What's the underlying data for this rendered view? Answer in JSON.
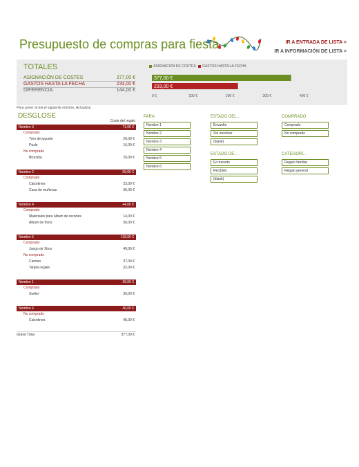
{
  "header": {
    "title": "Presupuesto de compras para fiesta",
    "link_list_entry": "IR A ENTRADA DE LISTA >",
    "link_list_info": "IR A INFORMACIÓN DE LISTA >"
  },
  "totals": {
    "title": "TOTALES",
    "rows": [
      {
        "label": "ASIGNACIÓN DE COSTES",
        "value": "377,00 €"
      },
      {
        "label": "GASTOS HASTA LA FECHA",
        "value": "233,00 €"
      },
      {
        "label": "DIFERENCIA",
        "value": "144,00 €"
      }
    ]
  },
  "chart_data": {
    "type": "bar",
    "orientation": "horizontal",
    "series": [
      {
        "name": "ASIGNACIÓN DE COSTES",
        "value": 377,
        "label": "377,00 €",
        "color": "#6b8e23"
      },
      {
        "name": "GASTOS HASTA LA FECHA",
        "value": 233,
        "label": "233,00 €",
        "color": "#b22222"
      }
    ],
    "ticks": [
      "0 €",
      "100 €",
      "200 €",
      "300 €",
      "400 €"
    ],
    "xlim": [
      0,
      400
    ],
    "legend_position": "top"
  },
  "note": "Para poner al día el siguiente informe, Actualizar.",
  "breakdown": {
    "title": "DESGLOSE",
    "column_header": "Coste del regalo",
    "groups": [
      {
        "name": "Nombre 3",
        "total": "71,00 €",
        "statuses": [
          {
            "status": "Comprado",
            "items": [
              {
                "name": "Tren de juguete",
                "value": "26,00 €"
              },
              {
                "name": "Puzle",
                "value": "16,00 €"
              }
            ]
          },
          {
            "status": "No comprado",
            "items": [
              {
                "name": "Bicicleta",
                "value": "29,00 €"
              }
            ]
          }
        ]
      },
      {
        "name": "Nombre 2",
        "total": "59,00 €",
        "statuses": [
          {
            "status": "Comprado",
            "items": [
              {
                "name": "Calcetines",
                "value": "23,00 €"
              },
              {
                "name": "Casa de muñecas",
                "value": "36,00 €"
              }
            ]
          }
        ]
      },
      {
        "name": "Nombre 4",
        "total": "44,00 €",
        "statuses": [
          {
            "status": "Comprado",
            "items": [
              {
                "name": "Materiales para álbum de recortes",
                "value": "14,00 €"
              },
              {
                "name": "Álbum de fotos",
                "value": "30,00 €"
              }
            ]
          }
        ]
      },
      {
        "name": "Nombre 5",
        "total": "118,00 €",
        "statuses": [
          {
            "status": "Comprado",
            "items": [
              {
                "name": "Juego de Xbox",
                "value": "49,00 €"
              }
            ]
          },
          {
            "status": "No comprado",
            "items": [
              {
                "name": "Camisa",
                "value": "37,00 €"
              },
              {
                "name": "Tarjeta regalo",
                "value": "32,00 €"
              }
            ]
          }
        ]
      },
      {
        "name": "Nombre 1",
        "total": "39,00 €",
        "statuses": [
          {
            "status": "Comprado",
            "items": [
              {
                "name": "Suéter",
                "value": "39,00 €"
              }
            ]
          }
        ]
      },
      {
        "name": "Nombre 6",
        "total": "46,00 €",
        "statuses": [
          {
            "status": "No comprado",
            "items": [
              {
                "name": "Calcetines",
                "value": "46,00 €"
              }
            ]
          }
        ]
      }
    ],
    "grand_total_label": "Grand Total",
    "grand_total_value": "377,00 €"
  },
  "slicers": {
    "para": {
      "title": "PARA",
      "items": [
        "Nombre 1",
        "Nombre 2",
        "Nombre 3",
        "Nombre 4",
        "Nombre 5",
        "Nombre 6"
      ]
    },
    "estado_del": {
      "title": "ESTADO DEL...",
      "items": [
        "Envuelto",
        "Sin envolver",
        "(blank)"
      ]
    },
    "estado_de": {
      "title": "ESTADO DE...",
      "items": [
        "En tránsito",
        "Recibido",
        "(blank)"
      ]
    },
    "comprado": {
      "title": "COMPRADO",
      "items": [
        "Comprado",
        "No comprado"
      ]
    },
    "categoria": {
      "title": "CATEGORÍ...",
      "items": [
        "Regalo familiar",
        "Regalo general"
      ]
    }
  },
  "colors": {
    "accent": "#6b8e23",
    "brand_red": "#8b1a1a",
    "band": "#ebebeb"
  }
}
